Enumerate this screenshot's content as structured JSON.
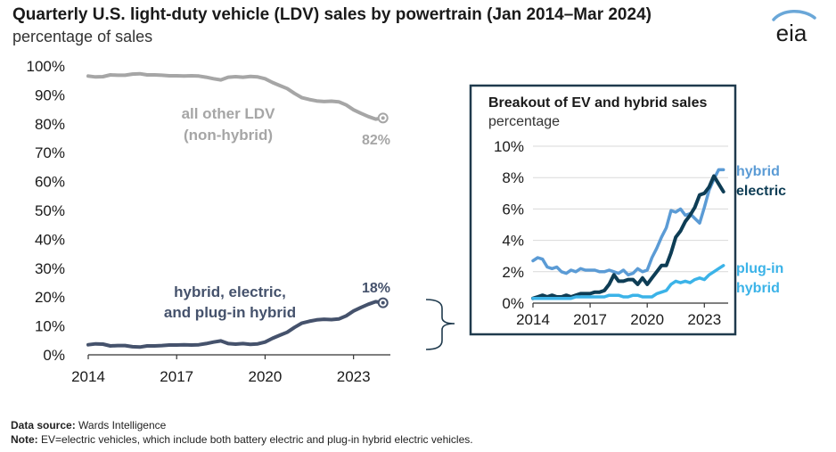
{
  "header": {
    "title": "Quarterly U.S. light-duty vehicle (LDV) sales by powertrain (Jan 2014–Mar 2024)",
    "subtitle": "percentage of sales",
    "logo_text": "eia"
  },
  "footer": {
    "source_label": "Data source:",
    "source_value": " Wards Intelligence",
    "note_label": "Note:",
    "note_value": " EV=electric vehicles, which include both battery electric and plug-in hybrid electric vehicles."
  },
  "colors": {
    "other_ldv": "#a6a6a6",
    "combined": "#45526c",
    "hybrid": "#5b9bd5",
    "electric": "#0e3d55",
    "plugin_hybrid": "#3bb3e8",
    "inset_border": "#1f3a4d"
  },
  "chart_data": [
    {
      "type": "line",
      "title": "Quarterly U.S. light-duty vehicle (LDV) sales by powertrain (Jan 2014–Mar 2024)",
      "ylabel": "percentage of sales",
      "ylim": [
        0,
        100
      ],
      "xlim": [
        2014,
        2024.25
      ],
      "x_ticks": [
        "2014",
        "2017",
        "2020",
        "2023"
      ],
      "y_ticks": [
        "0%",
        "10%",
        "20%",
        "30%",
        "40%",
        "50%",
        "60%",
        "70%",
        "80%",
        "90%",
        "100%"
      ],
      "grid": false,
      "series": [
        {
          "name": "all other LDV (non-hybrid)",
          "label_lines": [
            "all other LDV",
            "(non-hybrid)"
          ],
          "end_label": "82%",
          "x": [
            2014.0,
            2014.25,
            2014.5,
            2014.75,
            2015.0,
            2015.25,
            2015.5,
            2015.75,
            2016.0,
            2016.25,
            2016.5,
            2016.75,
            2017.0,
            2017.25,
            2017.5,
            2017.75,
            2018.0,
            2018.25,
            2018.5,
            2018.75,
            2019.0,
            2019.25,
            2019.5,
            2019.75,
            2020.0,
            2020.25,
            2020.5,
            2020.75,
            2021.0,
            2021.25,
            2021.5,
            2021.75,
            2022.0,
            2022.25,
            2022.5,
            2022.75,
            2023.0,
            2023.25,
            2023.5,
            2023.75,
            2024.0
          ],
          "values": [
            96.5,
            96.2,
            96.3,
            96.9,
            96.8,
            96.8,
            97.2,
            97.3,
            96.9,
            96.9,
            96.8,
            96.6,
            96.6,
            96.5,
            96.6,
            96.5,
            96.1,
            95.6,
            95.2,
            96.1,
            96.3,
            96.1,
            96.4,
            96.2,
            95.6,
            94.3,
            93.2,
            92.2,
            90.5,
            89.0,
            88.4,
            87.9,
            87.7,
            87.8,
            87.6,
            86.5,
            84.8,
            83.6,
            82.5,
            81.6,
            82.0
          ]
        },
        {
          "name": "hybrid, electric, and plug-in hybrid",
          "label_lines": [
            "hybrid, electric,",
            "and plug-in hybrid"
          ],
          "end_label": "18%",
          "x": [
            2014.0,
            2014.25,
            2014.5,
            2014.75,
            2015.0,
            2015.25,
            2015.5,
            2015.75,
            2016.0,
            2016.25,
            2016.5,
            2016.75,
            2017.0,
            2017.25,
            2017.5,
            2017.75,
            2018.0,
            2018.25,
            2018.5,
            2018.75,
            2019.0,
            2019.25,
            2019.5,
            2019.75,
            2020.0,
            2020.25,
            2020.5,
            2020.75,
            2021.0,
            2021.25,
            2021.5,
            2021.75,
            2022.0,
            2022.25,
            2022.5,
            2022.75,
            2023.0,
            2023.25,
            2023.5,
            2023.75,
            2024.0
          ],
          "values": [
            3.5,
            3.8,
            3.7,
            3.1,
            3.2,
            3.2,
            2.8,
            2.7,
            3.1,
            3.1,
            3.2,
            3.4,
            3.4,
            3.5,
            3.4,
            3.5,
            3.9,
            4.4,
            4.8,
            3.9,
            3.7,
            3.9,
            3.6,
            3.8,
            4.4,
            5.7,
            6.8,
            7.8,
            9.5,
            11.0,
            11.6,
            12.1,
            12.3,
            12.2,
            12.4,
            13.5,
            15.2,
            16.4,
            17.5,
            18.4,
            18.0
          ]
        }
      ]
    },
    {
      "type": "line",
      "title": "Breakout of EV and hybrid sales",
      "ylabel": "percentage",
      "ylim": [
        0,
        10
      ],
      "xlim": [
        2014,
        2024.25
      ],
      "x_ticks": [
        "2014",
        "2017",
        "2020",
        "2023"
      ],
      "y_ticks": [
        "0%",
        "2%",
        "4%",
        "6%",
        "8%",
        "10%"
      ],
      "grid": true,
      "series": [
        {
          "name": "hybrid",
          "label_lines": [
            "hybrid"
          ],
          "x": [
            2014.0,
            2014.25,
            2014.5,
            2014.75,
            2015.0,
            2015.25,
            2015.5,
            2015.75,
            2016.0,
            2016.25,
            2016.5,
            2016.75,
            2017.0,
            2017.25,
            2017.5,
            2017.75,
            2018.0,
            2018.25,
            2018.5,
            2018.75,
            2019.0,
            2019.25,
            2019.5,
            2019.75,
            2020.0,
            2020.25,
            2020.5,
            2020.75,
            2021.0,
            2021.25,
            2021.5,
            2021.75,
            2022.0,
            2022.25,
            2022.5,
            2022.75,
            2023.0,
            2023.25,
            2023.5,
            2023.75,
            2024.0
          ],
          "values": [
            2.7,
            2.9,
            2.8,
            2.3,
            2.2,
            2.3,
            2.0,
            1.9,
            2.1,
            2.0,
            2.2,
            2.1,
            2.1,
            2.1,
            2.0,
            2.0,
            2.1,
            2.0,
            1.9,
            2.1,
            1.8,
            1.9,
            2.2,
            2.0,
            2.1,
            2.9,
            3.5,
            4.2,
            4.8,
            5.9,
            5.8,
            6.0,
            5.6,
            5.7,
            5.4,
            5.1,
            6.1,
            7.2,
            7.9,
            8.5,
            8.5
          ]
        },
        {
          "name": "electric",
          "label_lines": [
            "electric"
          ],
          "x": [
            2014.0,
            2014.25,
            2014.5,
            2014.75,
            2015.0,
            2015.25,
            2015.5,
            2015.75,
            2016.0,
            2016.25,
            2016.5,
            2016.75,
            2017.0,
            2017.25,
            2017.5,
            2017.75,
            2018.0,
            2018.25,
            2018.5,
            2018.75,
            2019.0,
            2019.25,
            2019.5,
            2019.75,
            2020.0,
            2020.25,
            2020.5,
            2020.75,
            2021.0,
            2021.25,
            2021.5,
            2021.75,
            2022.0,
            2022.25,
            2022.5,
            2022.75,
            2023.0,
            2023.25,
            2023.5,
            2023.75,
            2024.0
          ],
          "values": [
            0.3,
            0.4,
            0.5,
            0.4,
            0.5,
            0.4,
            0.4,
            0.5,
            0.4,
            0.5,
            0.6,
            0.6,
            0.6,
            0.7,
            0.7,
            0.8,
            1.2,
            1.8,
            1.4,
            1.4,
            1.5,
            1.5,
            1.2,
            1.6,
            1.2,
            1.6,
            2.0,
            2.4,
            2.4,
            3.2,
            4.2,
            4.6,
            5.2,
            5.6,
            6.1,
            6.9,
            7.0,
            7.4,
            8.1,
            7.6,
            7.1
          ]
        },
        {
          "name": "plug-in hybrid",
          "label_lines": [
            "plug-in",
            "hybrid"
          ],
          "x": [
            2014.0,
            2014.25,
            2014.5,
            2014.75,
            2015.0,
            2015.25,
            2015.5,
            2015.75,
            2016.0,
            2016.25,
            2016.5,
            2016.75,
            2017.0,
            2017.25,
            2017.5,
            2017.75,
            2018.0,
            2018.25,
            2018.5,
            2018.75,
            2019.0,
            2019.25,
            2019.5,
            2019.75,
            2020.0,
            2020.25,
            2020.5,
            2020.75,
            2021.0,
            2021.25,
            2021.5,
            2021.75,
            2022.0,
            2022.25,
            2022.5,
            2022.75,
            2023.0,
            2023.25,
            2023.5,
            2023.75,
            2024.0
          ],
          "values": [
            0.3,
            0.3,
            0.3,
            0.3,
            0.3,
            0.3,
            0.3,
            0.3,
            0.3,
            0.4,
            0.4,
            0.4,
            0.4,
            0.4,
            0.4,
            0.4,
            0.5,
            0.5,
            0.5,
            0.4,
            0.4,
            0.5,
            0.5,
            0.4,
            0.4,
            0.4,
            0.6,
            0.7,
            0.8,
            1.2,
            1.4,
            1.3,
            1.4,
            1.3,
            1.5,
            1.6,
            1.5,
            1.8,
            2.0,
            2.2,
            2.4
          ]
        }
      ]
    }
  ]
}
